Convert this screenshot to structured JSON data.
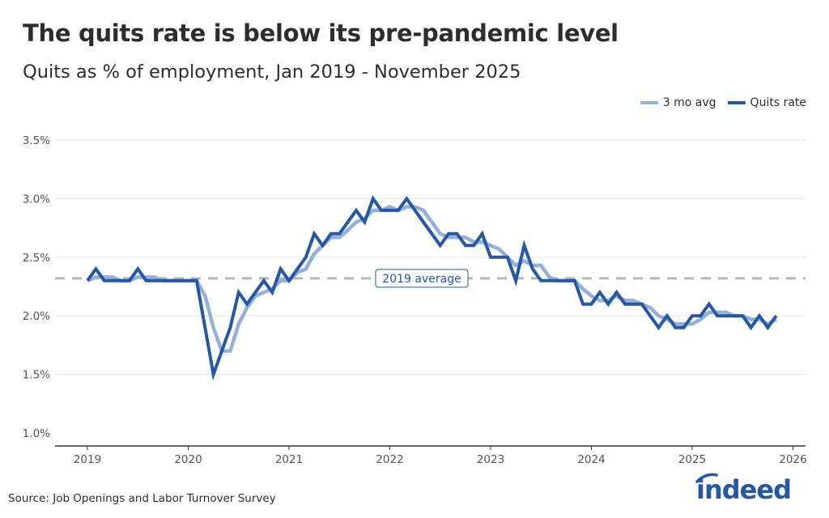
{
  "header": {
    "title": "The quits rate is below its pre-pandemic level",
    "subtitle": "Quits as % of employment, Jan 2019 - November 2025"
  },
  "footer": {
    "source": "Source: Job Openings and Labor Turnover Survey",
    "logo_text": "indeed"
  },
  "colors": {
    "quits_rate": "#2557a7",
    "avg_3mo": "#94b0da",
    "reference_line": "#b5b5b5",
    "logo": "#2557a7"
  },
  "chart_data": {
    "type": "line",
    "title": "The quits rate is below its pre-pandemic level",
    "subtitle": "Quits as % of employment, Jan 2019 - November 2025",
    "xlabel": "",
    "ylabel": "",
    "ylim": [
      1.0,
      3.5
    ],
    "yticks": [
      "1.0%",
      "1.5%",
      "2.0%",
      "2.5%",
      "3.0%",
      "3.5%"
    ],
    "ytick_values": [
      1.0,
      1.5,
      2.0,
      2.5,
      3.0,
      3.5
    ],
    "xticks": [
      "2019",
      "2020",
      "2021",
      "2022",
      "2023",
      "2024",
      "2025",
      "2026"
    ],
    "grid": "horizontal",
    "legend": "top-right",
    "reference_line": {
      "label": "2019 average",
      "value": 2.32
    },
    "x": [
      "2019-01",
      "2019-02",
      "2019-03",
      "2019-04",
      "2019-05",
      "2019-06",
      "2019-07",
      "2019-08",
      "2019-09",
      "2019-10",
      "2019-11",
      "2019-12",
      "2020-01",
      "2020-02",
      "2020-03",
      "2020-04",
      "2020-05",
      "2020-06",
      "2020-07",
      "2020-08",
      "2020-09",
      "2020-10",
      "2020-11",
      "2020-12",
      "2021-01",
      "2021-02",
      "2021-03",
      "2021-04",
      "2021-05",
      "2021-06",
      "2021-07",
      "2021-08",
      "2021-09",
      "2021-10",
      "2021-11",
      "2021-12",
      "2022-01",
      "2022-02",
      "2022-03",
      "2022-04",
      "2022-05",
      "2022-06",
      "2022-07",
      "2022-08",
      "2022-09",
      "2022-10",
      "2022-11",
      "2022-12",
      "2023-01",
      "2023-02",
      "2023-03",
      "2023-04",
      "2023-05",
      "2023-06",
      "2023-07",
      "2023-08",
      "2023-09",
      "2023-10",
      "2023-11",
      "2023-12",
      "2024-01",
      "2024-02",
      "2024-03",
      "2024-04",
      "2024-05",
      "2024-06",
      "2024-07",
      "2024-08",
      "2024-09",
      "2024-10",
      "2024-11",
      "2024-12",
      "2025-01",
      "2025-02",
      "2025-03",
      "2025-04",
      "2025-05",
      "2025-06",
      "2025-07",
      "2025-08",
      "2025-09",
      "2025-10",
      "2025-11"
    ],
    "series": [
      {
        "name": "3 mo avg",
        "values": [
          2.3,
          2.33,
          2.33,
          2.33,
          2.3,
          2.3,
          2.33,
          2.33,
          2.33,
          2.3,
          2.3,
          2.3,
          2.3,
          2.3,
          2.17,
          1.9,
          1.7,
          1.7,
          1.93,
          2.07,
          2.17,
          2.2,
          2.23,
          2.3,
          2.3,
          2.37,
          2.4,
          2.53,
          2.6,
          2.67,
          2.67,
          2.73,
          2.8,
          2.83,
          2.9,
          2.9,
          2.93,
          2.9,
          2.93,
          2.93,
          2.9,
          2.8,
          2.7,
          2.67,
          2.67,
          2.67,
          2.63,
          2.63,
          2.6,
          2.57,
          2.5,
          2.43,
          2.47,
          2.43,
          2.43,
          2.33,
          2.3,
          2.3,
          2.3,
          2.23,
          2.17,
          2.13,
          2.13,
          2.17,
          2.13,
          2.13,
          2.1,
          2.07,
          2.0,
          1.97,
          1.93,
          1.93,
          1.93,
          1.97,
          2.03,
          2.03,
          2.03,
          2.0,
          2.0,
          1.97,
          1.97,
          1.93,
          1.97
        ]
      },
      {
        "name": "Quits rate",
        "values": [
          2.3,
          2.4,
          2.3,
          2.3,
          2.3,
          2.3,
          2.4,
          2.3,
          2.3,
          2.3,
          2.3,
          2.3,
          2.3,
          2.3,
          1.9,
          1.5,
          1.7,
          1.9,
          2.2,
          2.1,
          2.2,
          2.3,
          2.2,
          2.4,
          2.3,
          2.4,
          2.5,
          2.7,
          2.6,
          2.7,
          2.7,
          2.8,
          2.9,
          2.8,
          3.0,
          2.9,
          2.9,
          2.9,
          3.0,
          2.9,
          2.8,
          2.7,
          2.6,
          2.7,
          2.7,
          2.6,
          2.6,
          2.7,
          2.5,
          2.5,
          2.5,
          2.3,
          2.6,
          2.4,
          2.3,
          2.3,
          2.3,
          2.3,
          2.3,
          2.1,
          2.1,
          2.2,
          2.1,
          2.2,
          2.1,
          2.1,
          2.1,
          2.0,
          1.9,
          2.0,
          1.9,
          1.9,
          2.0,
          2.0,
          2.1,
          2.0,
          2.0,
          2.0,
          2.0,
          1.9,
          2.0,
          1.9,
          2.0
        ]
      }
    ]
  }
}
